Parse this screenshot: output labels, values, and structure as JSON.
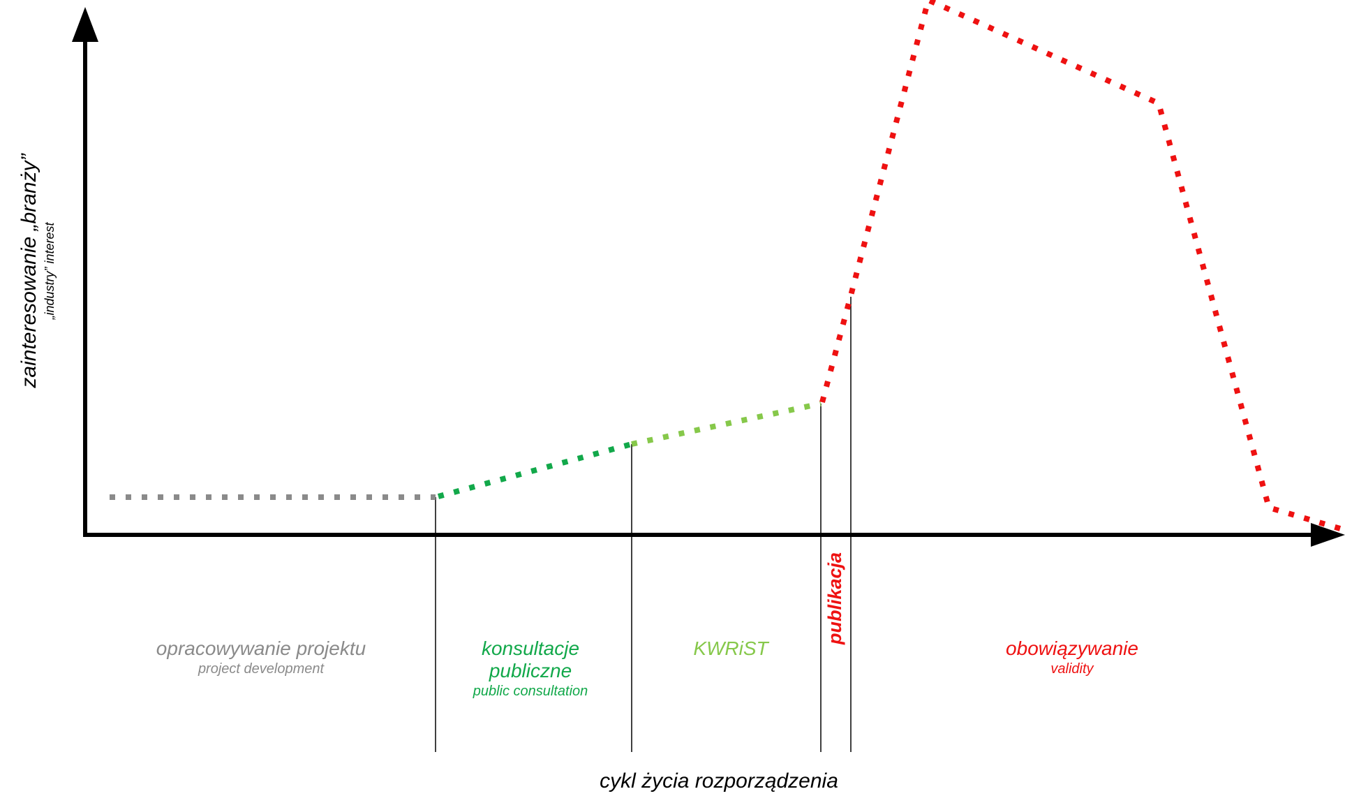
{
  "axes": {
    "x_label": "cykl życia rozporządzenia",
    "y_label": "zainteresowanie „branży”",
    "y_sublabel": "„industry” interest"
  },
  "phases": [
    {
      "id": "project-development",
      "label": "opracowywanie projektu",
      "sublabel": "project development",
      "color": "#8a8a8a"
    },
    {
      "id": "public-consultation",
      "label": "konsultacje publiczne",
      "sublabel": "public consultation",
      "color": "#12a84a"
    },
    {
      "id": "kwrist",
      "label": "KWRiST",
      "sublabel": "",
      "color": "#86c84a"
    },
    {
      "id": "publication",
      "label": "publikacja",
      "sublabel": "",
      "color": "#ee1111"
    },
    {
      "id": "validity",
      "label": "obowiązywanie",
      "sublabel": "validity",
      "color": "#ee1111"
    }
  ],
  "colors": {
    "axis": "#000000",
    "gray": "#8a8a8a",
    "green_dark": "#12a84a",
    "green_light": "#86c84a",
    "red": "#ee1111"
  }
}
